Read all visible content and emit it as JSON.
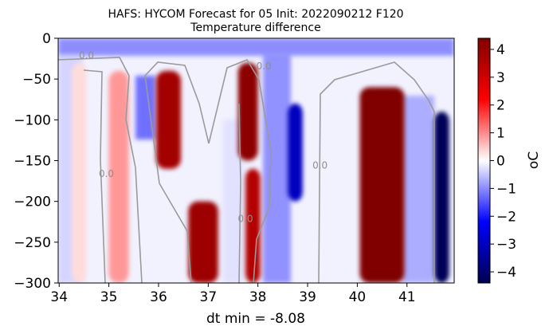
{
  "chart_data": {
    "type": "heatmap",
    "title_line1": "HAFS: HYCOM Forecast for 05 Init: 2022090212 F120",
    "title_line2": "Temperature difference",
    "xlabel": "dt min = -8.08",
    "colorbar_label": "°C",
    "colorbar_label_display": "oC",
    "xlim": [
      33.98,
      41.95
    ],
    "ylim": [
      -300,
      0
    ],
    "clim": [
      -4.4,
      4.4
    ],
    "colormap": "seismic",
    "x_ticks": [
      "34",
      "35",
      "36",
      "37",
      "38",
      "39",
      "40",
      "41"
    ],
    "x_tick_values": [
      34,
      35,
      36,
      37,
      38,
      39,
      40,
      41
    ],
    "y_ticks": [
      "0",
      "−50",
      "−100",
      "−150",
      "−200",
      "−250",
      "−300"
    ],
    "y_tick_values": [
      0,
      -50,
      -100,
      -150,
      -200,
      -250,
      -300
    ],
    "colorbar_ticks": [
      "4",
      "3",
      "2",
      "1",
      "0",
      "−1",
      "−2",
      "−3",
      "−4"
    ],
    "colorbar_tick_values": [
      4,
      3,
      2,
      1,
      0,
      -1,
      -2,
      -3,
      -4
    ],
    "contour_labels": [
      {
        "text": "0.0",
        "x": 34.55,
        "y": -25
      },
      {
        "text": "0.0",
        "x": 34.95,
        "y": -170
      },
      {
        "text": "0.0",
        "x": 38.12,
        "y": -38
      },
      {
        "text": "0.0",
        "x": 37.75,
        "y": -225
      },
      {
        "text": "0.0",
        "x": 39.25,
        "y": -160
      }
    ],
    "features": [
      {
        "x": 34.4,
        "width": 0.3,
        "y_top": -30,
        "y_bot": -300,
        "value": 0.3
      },
      {
        "x": 35.2,
        "width": 0.4,
        "y_top": -40,
        "y_bot": -300,
        "value": 0.9
      },
      {
        "x": 36.2,
        "width": 0.5,
        "y_top": -40,
        "y_bot": -160,
        "value": 3.8
      },
      {
        "x": 36.9,
        "width": 0.6,
        "y_top": -200,
        "y_bot": -300,
        "value": 3.9
      },
      {
        "x": 37.8,
        "width": 0.4,
        "y_top": -30,
        "y_bot": -150,
        "value": 4.2
      },
      {
        "x": 37.9,
        "width": 0.3,
        "y_top": -160,
        "y_bot": -300,
        "value": 3.5
      },
      {
        "x": 38.75,
        "width": 0.3,
        "y_top": -80,
        "y_bot": -200,
        "value": -3.0
      },
      {
        "x": 40.5,
        "width": 0.9,
        "y_top": -60,
        "y_bot": -300,
        "value": 4.4
      },
      {
        "x": 41.7,
        "width": 0.3,
        "y_top": -90,
        "y_bot": -300,
        "value": -4.3
      }
    ]
  }
}
